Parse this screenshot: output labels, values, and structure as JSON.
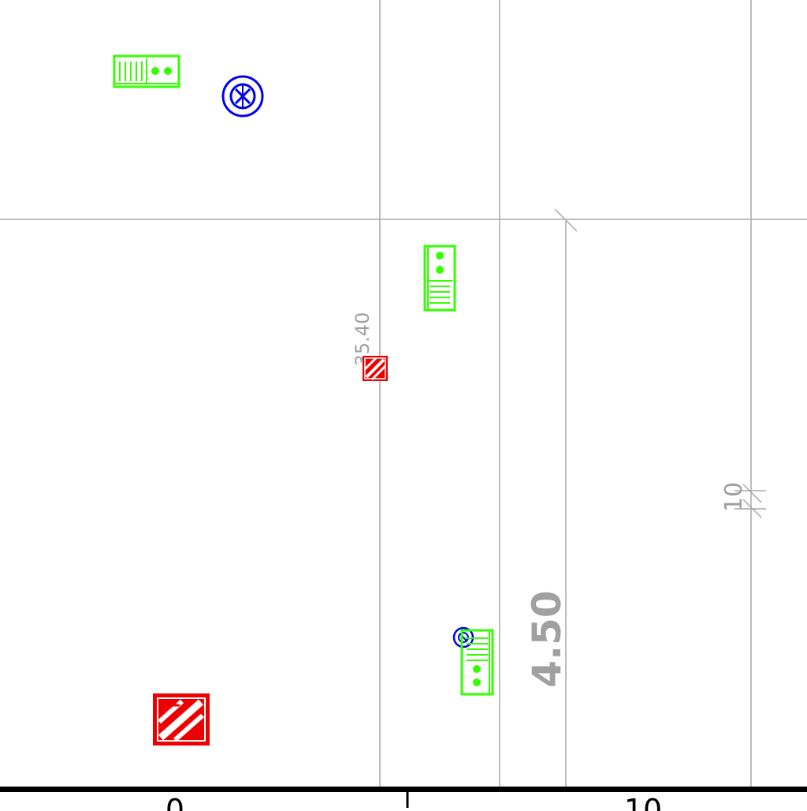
{
  "colors": {
    "background": "#ffffff",
    "grid": "#a8a8a8",
    "dimension": "#a0a0a0",
    "ruler": "#000000",
    "signal_symbol": "#33ff00",
    "hydrant_symbol": "#0000ee",
    "fire_symbol": "#ee0000"
  },
  "dimensions": {
    "dim_small_label": "35.40",
    "dim_large_label": "4.50",
    "dim_side_label": "10"
  },
  "ruler": {
    "label_left": "0",
    "label_right": "10"
  },
  "symbols": {
    "signal_icon": "traffic-signal-icon",
    "hydrant_icon": "hydrant-valve-icon",
    "fire_icon": "fire-equipment-icon"
  }
}
